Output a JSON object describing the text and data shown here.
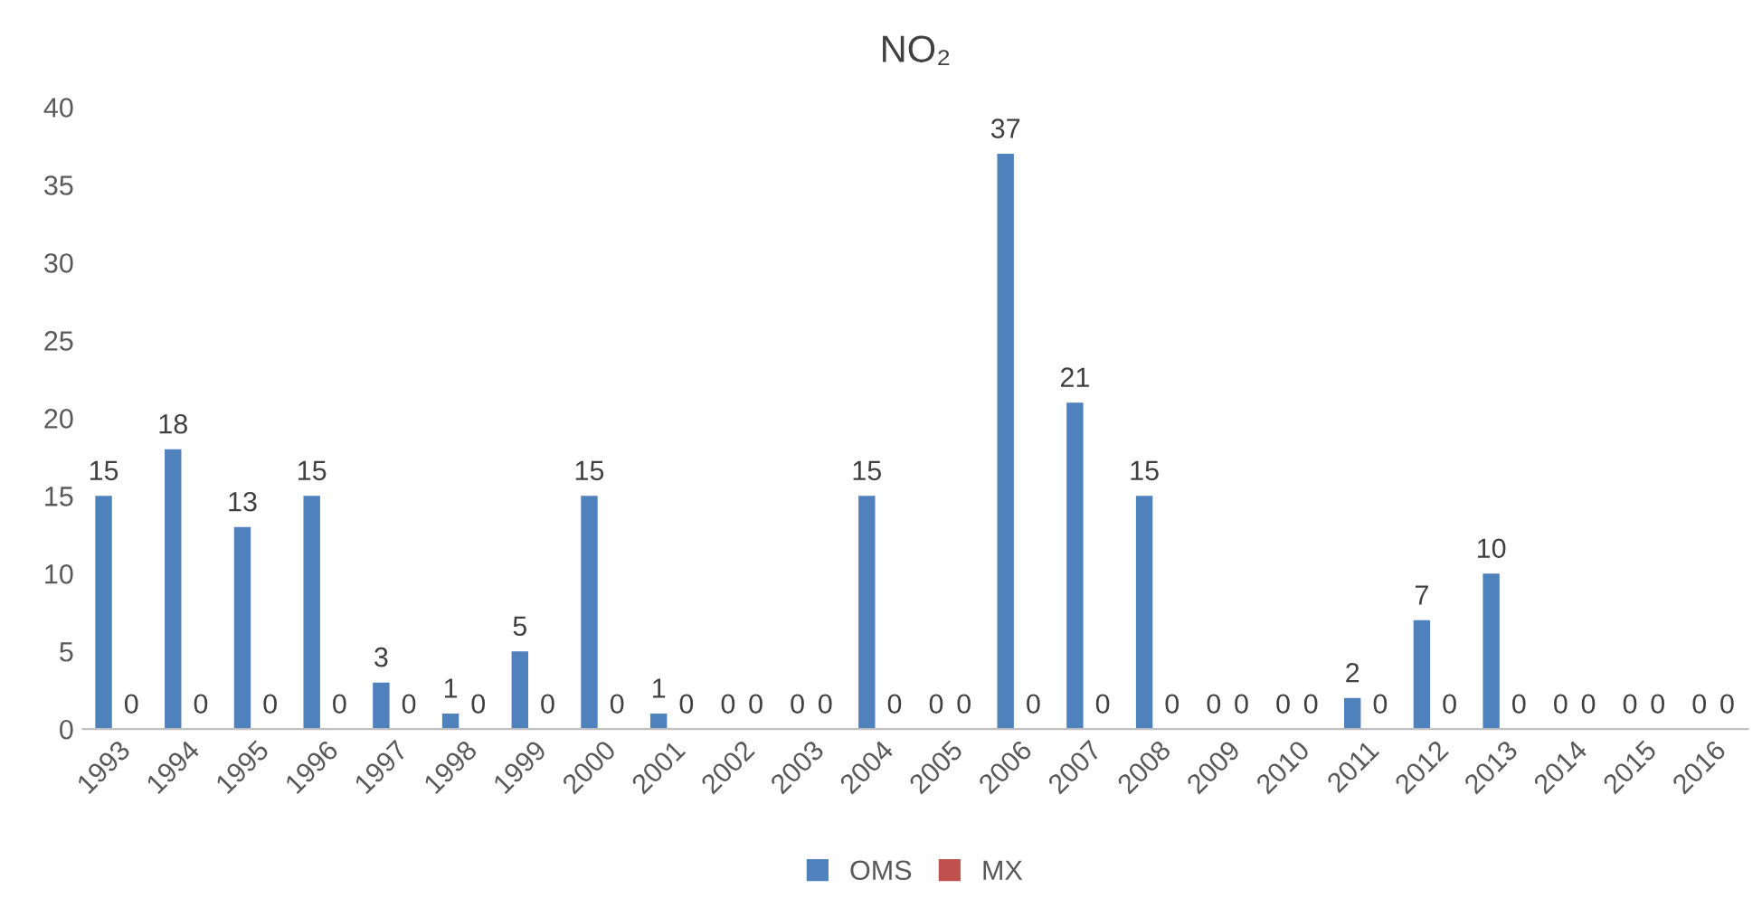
{
  "chart_data": {
    "type": "bar",
    "title": "NO₂",
    "categories": [
      "1993",
      "1994",
      "1995",
      "1996",
      "1997",
      "1998",
      "1999",
      "2000",
      "2001",
      "2002",
      "2003",
      "2004",
      "2005",
      "2006",
      "2007",
      "2008",
      "2009",
      "2010",
      "2011",
      "2012",
      "2013",
      "2014",
      "2015",
      "2016"
    ],
    "series": [
      {
        "name": "OMS",
        "color": "#4f81bd",
        "values": [
          15,
          18,
          13,
          15,
          3,
          1,
          5,
          15,
          1,
          0,
          0,
          15,
          0,
          37,
          21,
          15,
          0,
          0,
          2,
          7,
          10,
          0,
          0,
          0
        ]
      },
      {
        "name": "MX",
        "color": "#c0504d",
        "values": [
          0,
          0,
          0,
          0,
          0,
          0,
          0,
          0,
          0,
          0,
          0,
          0,
          0,
          0,
          0,
          0,
          0,
          0,
          0,
          0,
          0,
          0,
          0,
          0
        ]
      }
    ],
    "ylim": [
      0,
      40
    ],
    "yticks": [
      0,
      5,
      10,
      15,
      20,
      25,
      30,
      35,
      40
    ],
    "data_labels": true,
    "legend": "bottom",
    "grid": false
  }
}
